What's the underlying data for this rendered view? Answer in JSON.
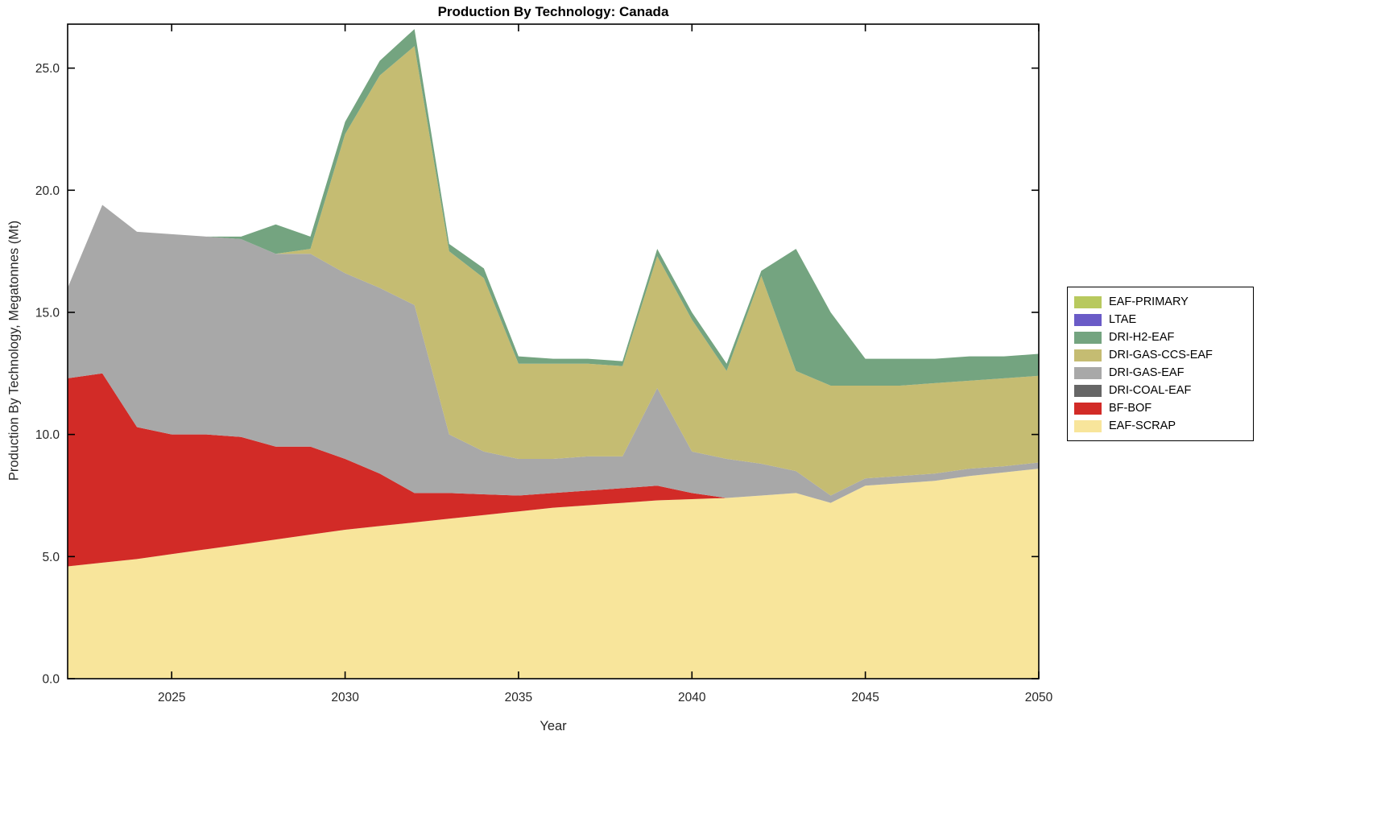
{
  "chart_data": {
    "type": "area",
    "stacked": true,
    "title": "Production By Technology: Canada",
    "xlabel": "Year",
    "ylabel": "Production By Technology, Megatonnes (Mt)",
    "xlim": [
      2022,
      2050
    ],
    "ylim": [
      0,
      26.8
    ],
    "grid": false,
    "legend_position": "right-outside",
    "xticks": [
      2025,
      2030,
      2035,
      2040,
      2045,
      2050
    ],
    "xtick_labels": [
      "2025",
      "2030",
      "2035",
      "2040",
      "2045",
      "2050"
    ],
    "yticks": [
      0,
      5,
      10,
      15,
      20,
      25
    ],
    "ytick_labels": [
      "0.0",
      "5.0",
      "10.0",
      "15.0",
      "20.0",
      "25.0"
    ],
    "x": [
      2022,
      2023,
      2024,
      2025,
      2026,
      2027,
      2028,
      2029,
      2030,
      2031,
      2032,
      2033,
      2034,
      2035,
      2036,
      2037,
      2038,
      2039,
      2040,
      2041,
      2042,
      2043,
      2044,
      2045,
      2046,
      2047,
      2048,
      2049,
      2050
    ],
    "series": [
      {
        "name": "EAF-SCRAP",
        "color": "#f8e59b",
        "values": [
          4.6,
          4.75,
          4.9,
          5.1,
          5.3,
          5.5,
          5.7,
          5.9,
          6.1,
          6.25,
          6.4,
          6.55,
          6.7,
          6.85,
          7.0,
          7.1,
          7.2,
          7.3,
          7.35,
          7.4,
          7.5,
          7.6,
          7.2,
          7.9,
          8.0,
          8.1,
          8.3,
          8.45,
          8.6
        ]
      },
      {
        "name": "BF-BOF",
        "color": "#d22b27",
        "values": [
          7.7,
          7.75,
          5.4,
          4.9,
          4.7,
          4.4,
          3.8,
          3.6,
          2.9,
          2.15,
          1.2,
          1.05,
          0.85,
          0.65,
          0.6,
          0.6,
          0.6,
          0.6,
          0.25,
          0,
          0,
          0,
          0,
          0,
          0,
          0,
          0,
          0,
          0
        ]
      },
      {
        "name": "DRI-COAL-EAF",
        "color": "#666666",
        "values": [
          0,
          0,
          0,
          0,
          0,
          0,
          0,
          0,
          0,
          0,
          0,
          0,
          0,
          0,
          0,
          0,
          0,
          0,
          0,
          0,
          0,
          0,
          0,
          0,
          0,
          0,
          0,
          0,
          0
        ]
      },
      {
        "name": "DRI-GAS-EAF",
        "color": "#a8a8a8",
        "values": [
          3.7,
          6.9,
          8.0,
          8.2,
          8.1,
          8.1,
          7.9,
          7.9,
          7.6,
          7.6,
          7.7,
          2.4,
          1.75,
          1.5,
          1.4,
          1.4,
          1.3,
          4.0,
          1.7,
          1.6,
          1.3,
          0.9,
          0.3,
          0.3,
          0.3,
          0.3,
          0.3,
          0.25,
          0.25
        ]
      },
      {
        "name": "DRI-GAS-CCS-EAF",
        "color": "#c5bc72",
        "values": [
          0,
          0,
          0,
          0,
          0,
          0,
          0,
          0.2,
          5.7,
          8.7,
          10.6,
          7.5,
          7.1,
          3.9,
          3.9,
          3.8,
          3.7,
          5.4,
          5.4,
          3.6,
          7.7,
          4.1,
          4.5,
          3.8,
          3.7,
          3.7,
          3.6,
          3.6,
          3.55
        ]
      },
      {
        "name": "DRI-H2-EAF",
        "color": "#74a480",
        "values": [
          0,
          0,
          0,
          0,
          0,
          0.1,
          1.2,
          0.5,
          0.5,
          0.6,
          0.7,
          0.3,
          0.4,
          0.3,
          0.2,
          0.2,
          0.2,
          0.3,
          0.3,
          0.3,
          0.2,
          5.0,
          3.0,
          1.1,
          1.1,
          1.0,
          1.0,
          0.9,
          0.9
        ]
      },
      {
        "name": "LTAE",
        "color": "#6a5bc7",
        "values": [
          0,
          0,
          0,
          0,
          0,
          0,
          0,
          0,
          0,
          0,
          0,
          0,
          0,
          0,
          0,
          0,
          0,
          0,
          0,
          0,
          0,
          0,
          0,
          0,
          0,
          0,
          0,
          0,
          0
        ]
      },
      {
        "name": "EAF-PRIMARY",
        "color": "#b8c95e",
        "values": [
          0,
          0,
          0,
          0,
          0,
          0,
          0,
          0,
          0,
          0,
          0,
          0,
          0,
          0,
          0,
          0,
          0,
          0,
          0,
          0,
          0,
          0,
          0,
          0,
          0,
          0,
          0,
          0,
          0
        ]
      }
    ]
  }
}
